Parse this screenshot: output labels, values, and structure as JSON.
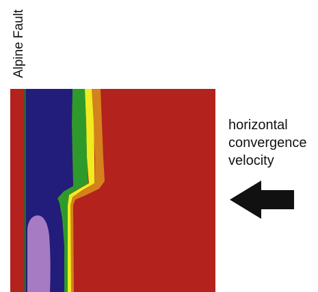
{
  "labels": {
    "fault": "Alpine Fault",
    "annotation_line1": "horizontal",
    "annotation_line2": "convergence",
    "annotation_line3": "velocity"
  },
  "colors": {
    "background": "#ffffff",
    "crust": "#b3221d",
    "fault-boundary": "#3a5c2e",
    "deep-layer": "#221d7a",
    "core": "#a67bc3",
    "green-band": "#2f9a2c",
    "yellow-band": "#f0ec20",
    "orange-band": "#d4821c",
    "arrow": "#111111"
  },
  "arrow_direction": "left"
}
